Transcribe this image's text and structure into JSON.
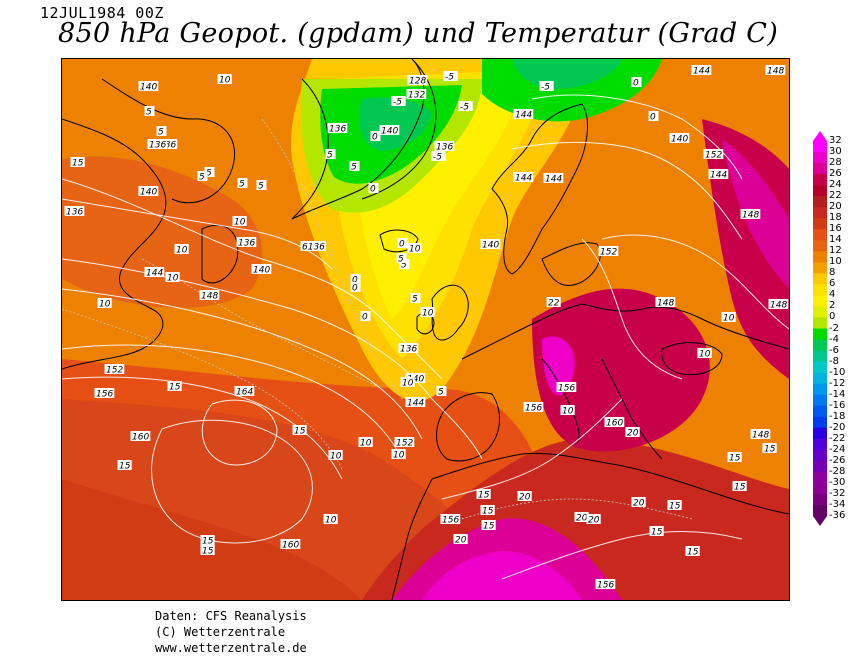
{
  "header": {
    "date": "12JUL1984 00Z",
    "title": "850 hPa Geopot. (gpdam) und  Temperatur (Grad C)"
  },
  "footer": {
    "line1": "Daten: CFS Reanalysis",
    "line2": "(C) Wetterzentrale",
    "line3": "www.wetterzentrale.de"
  },
  "legend": {
    "ticks": [
      "32",
      "30",
      "28",
      "26",
      "24",
      "22",
      "20",
      "18",
      "16",
      "14",
      "12",
      "10",
      "8",
      "6",
      "4",
      "2",
      "0",
      "-2",
      "-4",
      "-6",
      "-8",
      "-10",
      "-12",
      "-14",
      "-16",
      "-18",
      "-20",
      "-22",
      "-24",
      "-26",
      "-28",
      "-30",
      "-32",
      "-34",
      "-36"
    ],
    "colors": [
      "#ff00ff",
      "#ee00c8",
      "#dd0096",
      "#c8004a",
      "#b40028",
      "#b31e1e",
      "#c8281e",
      "#d23c14",
      "#e65014",
      "#e66414",
      "#ee8200",
      "#f5a000",
      "#ffc800",
      "#ffe100",
      "#fff000",
      "#e1f000",
      "#b4e600",
      "#00dc00",
      "#00c850",
      "#00c88c",
      "#00c8c8",
      "#00b4dc",
      "#0096f0",
      "#0078f0",
      "#005af0",
      "#003cf0",
      "#2800e6",
      "#5000dc",
      "#6400c8",
      "#7800b4",
      "#8c00a0",
      "#8c0096",
      "#78007d",
      "#640064"
    ]
  },
  "map": {
    "geopotential_labels": [
      {
        "text": "140"
      },
      {
        "text": "136"
      },
      {
        "text": "128"
      },
      {
        "text": "132"
      },
      {
        "text": "144"
      },
      {
        "text": "136"
      },
      {
        "text": "140"
      },
      {
        "text": "136"
      },
      {
        "text": "144"
      },
      {
        "text": "144"
      },
      {
        "text": "140"
      },
      {
        "text": "144"
      },
      {
        "text": "140"
      },
      {
        "text": "136"
      },
      {
        "text": "6136"
      },
      {
        "text": "136"
      },
      {
        "text": "140"
      },
      {
        "text": "140"
      },
      {
        "text": "144"
      },
      {
        "text": "148"
      },
      {
        "text": "152"
      },
      {
        "text": "152"
      },
      {
        "text": "156"
      },
      {
        "text": "164"
      },
      {
        "text": "160"
      },
      {
        "text": "152"
      },
      {
        "text": "148"
      },
      {
        "text": "144"
      },
      {
        "text": "140"
      },
      {
        "text": "136"
      },
      {
        "text": "136"
      },
      {
        "text": "156"
      },
      {
        "text": "156"
      },
      {
        "text": "160"
      },
      {
        "text": "156"
      },
      {
        "text": "160"
      },
      {
        "text": "156"
      },
      {
        "text": "148"
      },
      {
        "text": "148"
      },
      {
        "text": "148"
      },
      {
        "text": "152"
      },
      {
        "text": "144"
      },
      {
        "text": "148"
      }
    ],
    "temperature_labels": [
      {
        "text": "10"
      },
      {
        "text": "5"
      },
      {
        "text": "5"
      },
      {
        "text": "5"
      },
      {
        "text": "0"
      },
      {
        "text": "-5"
      },
      {
        "text": "-5"
      },
      {
        "text": "-5"
      },
      {
        "text": "-5"
      },
      {
        "text": "0"
      },
      {
        "text": "-5"
      },
      {
        "text": "0"
      },
      {
        "text": "5"
      },
      {
        "text": "5"
      },
      {
        "text": "5"
      },
      {
        "text": "15"
      },
      {
        "text": "5"
      },
      {
        "text": "5"
      },
      {
        "text": "0"
      },
      {
        "text": "10"
      },
      {
        "text": "10"
      },
      {
        "text": "0"
      },
      {
        "text": "0"
      },
      {
        "text": "5"
      },
      {
        "text": "0"
      },
      {
        "text": "10"
      },
      {
        "text": "10"
      },
      {
        "text": "10"
      },
      {
        "text": "10"
      },
      {
        "text": "5"
      },
      {
        "text": "5"
      },
      {
        "text": "0"
      },
      {
        "text": "5"
      },
      {
        "text": "10"
      },
      {
        "text": "10"
      },
      {
        "text": "10"
      },
      {
        "text": "15"
      },
      {
        "text": "15"
      },
      {
        "text": "10"
      },
      {
        "text": "15"
      },
      {
        "text": "10"
      },
      {
        "text": "15"
      },
      {
        "text": "15"
      },
      {
        "text": "20"
      },
      {
        "text": "15"
      },
      {
        "text": "15"
      },
      {
        "text": "20"
      },
      {
        "text": "15"
      },
      {
        "text": "20"
      },
      {
        "text": "20"
      },
      {
        "text": "20"
      },
      {
        "text": "20"
      },
      {
        "text": "15"
      },
      {
        "text": "15"
      },
      {
        "text": "15"
      },
      {
        "text": "15"
      },
      {
        "text": "15"
      },
      {
        "text": "10"
      },
      {
        "text": "10"
      },
      {
        "text": "10"
      },
      {
        "text": "15"
      },
      {
        "text": "22"
      }
    ]
  }
}
